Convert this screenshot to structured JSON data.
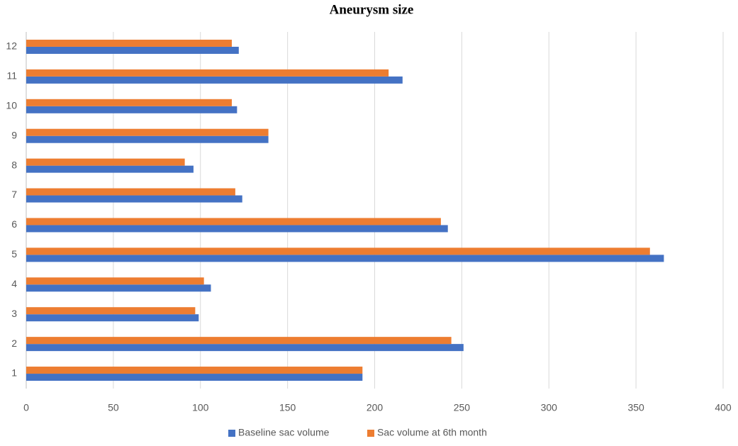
{
  "chart_data": {
    "type": "bar",
    "orientation": "horizontal",
    "title": "Aneurysm size",
    "categories": [
      "1",
      "2",
      "3",
      "4",
      "5",
      "6",
      "7",
      "8",
      "9",
      "10",
      "11",
      "12"
    ],
    "series": [
      {
        "name": "Baseline sac volume",
        "color": "#4472c4",
        "values": [
          193,
          251,
          99,
          106,
          366,
          242,
          124,
          96,
          139,
          121,
          216,
          122
        ]
      },
      {
        "name": "Sac volume at 6th month",
        "color": "#ed7d31",
        "values": [
          193,
          244,
          97,
          102,
          358,
          238,
          120,
          91,
          139,
          118,
          208,
          118
        ]
      }
    ],
    "xlim": [
      0,
      400
    ],
    "xticks": [
      0,
      50,
      100,
      150,
      200,
      250,
      300,
      350,
      400
    ],
    "grid": true,
    "legend": "bottom"
  }
}
